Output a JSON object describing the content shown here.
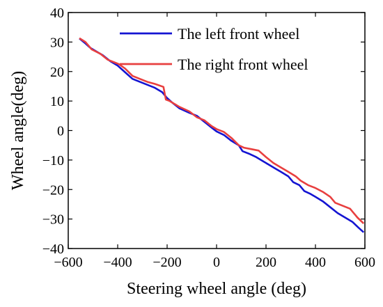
{
  "chart_data": {
    "type": "line",
    "title": "",
    "xlabel": "Steering wheel angle (deg)",
    "ylabel": "Wheel angle(deg)",
    "xlim": [
      -600,
      600
    ],
    "ylim": [
      -40,
      40
    ],
    "x_ticks": [
      -600,
      -400,
      -200,
      0,
      200,
      400,
      600
    ],
    "y_ticks": [
      -40,
      -30,
      -20,
      -10,
      0,
      10,
      20,
      30,
      40
    ],
    "x_tick_labels": [
      "−600",
      "−400",
      "−200",
      "0",
      "200",
      "400",
      "600"
    ],
    "y_tick_labels": [
      "−40",
      "−30",
      "−20",
      "−10",
      "0",
      "10",
      "20",
      "30",
      "40"
    ],
    "grid": false,
    "legend_position": "top-right",
    "series": [
      {
        "name": "The left front wheel",
        "color": "#1414d2",
        "points": [
          [
            -555,
            31.2
          ],
          [
            -530,
            29.5
          ],
          [
            -510,
            28.0
          ],
          [
            -480,
            26.5
          ],
          [
            -460,
            25.5
          ],
          [
            -430,
            23.5
          ],
          [
            -400,
            22.0
          ],
          [
            -380,
            20.5
          ],
          [
            -360,
            19.0
          ],
          [
            -340,
            17.5
          ],
          [
            -310,
            16.5
          ],
          [
            -280,
            15.5
          ],
          [
            -250,
            14.5
          ],
          [
            -220,
            13.0
          ],
          [
            -200,
            11.0
          ],
          [
            -180,
            9.5
          ],
          [
            -150,
            7.5
          ],
          [
            -110,
            6.0
          ],
          [
            -80,
            5.0
          ],
          [
            -50,
            3.0
          ],
          [
            -20,
            1.0
          ],
          [
            0,
            -0.3
          ],
          [
            30,
            -1.5
          ],
          [
            60,
            -3.5
          ],
          [
            90,
            -5.0
          ],
          [
            105,
            -7.0
          ],
          [
            130,
            -7.8
          ],
          [
            160,
            -9.0
          ],
          [
            190,
            -10.5
          ],
          [
            220,
            -12.0
          ],
          [
            240,
            -13.0
          ],
          [
            260,
            -14.0
          ],
          [
            290,
            -15.5
          ],
          [
            310,
            -17.5
          ],
          [
            335,
            -18.5
          ],
          [
            355,
            -20.5
          ],
          [
            380,
            -21.5
          ],
          [
            400,
            -22.5
          ],
          [
            430,
            -24.0
          ],
          [
            460,
            -26.0
          ],
          [
            490,
            -28.0
          ],
          [
            520,
            -29.5
          ],
          [
            550,
            -31.0
          ],
          [
            575,
            -33.0
          ],
          [
            595,
            -34.5
          ]
        ]
      },
      {
        "name": "The right front wheel",
        "color": "#e83f3f",
        "points": [
          [
            -555,
            31.3
          ],
          [
            -530,
            30.0
          ],
          [
            -505,
            27.5
          ],
          [
            -470,
            26.0
          ],
          [
            -440,
            24.0
          ],
          [
            -410,
            23.0
          ],
          [
            -395,
            22.5
          ],
          [
            -370,
            21.0
          ],
          [
            -340,
            18.5
          ],
          [
            -310,
            17.5
          ],
          [
            -280,
            16.5
          ],
          [
            -250,
            15.8
          ],
          [
            -215,
            14.8
          ],
          [
            -205,
            10.5
          ],
          [
            -190,
            10.0
          ],
          [
            -170,
            9.0
          ],
          [
            -150,
            8.0
          ],
          [
            -110,
            6.5
          ],
          [
            -80,
            4.5
          ],
          [
            -50,
            3.5
          ],
          [
            -20,
            1.5
          ],
          [
            0,
            0.5
          ],
          [
            30,
            -0.5
          ],
          [
            60,
            -2.5
          ],
          [
            90,
            -5.0
          ],
          [
            110,
            -5.8
          ],
          [
            140,
            -6.3
          ],
          [
            170,
            -6.8
          ],
          [
            200,
            -9.0
          ],
          [
            230,
            -11.0
          ],
          [
            260,
            -12.5
          ],
          [
            290,
            -14.0
          ],
          [
            320,
            -15.5
          ],
          [
            340,
            -17.0
          ],
          [
            370,
            -18.5
          ],
          [
            400,
            -19.5
          ],
          [
            430,
            -20.8
          ],
          [
            460,
            -22.5
          ],
          [
            480,
            -24.5
          ],
          [
            510,
            -25.5
          ],
          [
            540,
            -26.5
          ],
          [
            570,
            -29.5
          ],
          [
            595,
            -31.5
          ]
        ]
      }
    ]
  }
}
